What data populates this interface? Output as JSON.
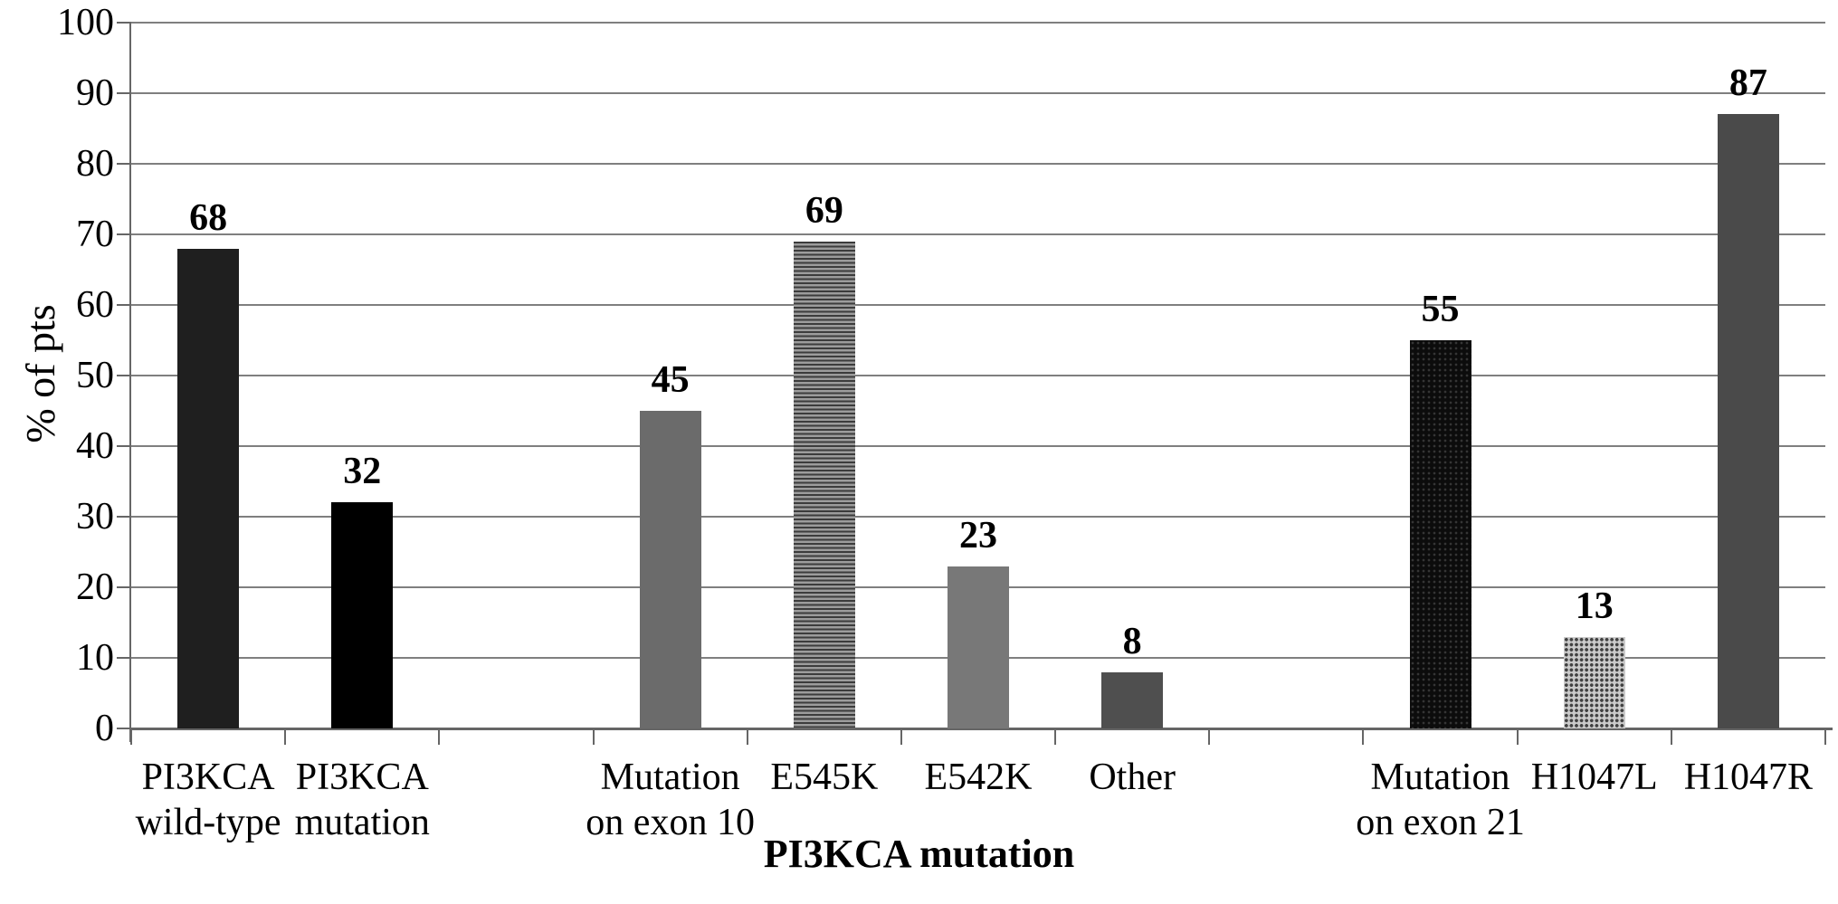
{
  "chart_data": {
    "type": "bar",
    "title": "",
    "xlabel": "PI3KCA mutation",
    "ylabel": "% of pts",
    "ylim": [
      0,
      100
    ],
    "y_ticks": [
      0,
      10,
      20,
      30,
      40,
      50,
      60,
      70,
      80,
      90,
      100
    ],
    "grid": true,
    "legend": false,
    "n_slots": 11,
    "categories": [
      "PI3KCA wild-type",
      "PI3KCA mutation",
      "Mutation on exon 10",
      "E545K",
      "E542K",
      "Other",
      "Mutation on exon 21",
      "H1047L",
      "H1047R"
    ],
    "values": [
      68,
      32,
      45,
      69,
      23,
      8,
      55,
      13,
      87
    ],
    "bars": [
      {
        "slot": 0,
        "label": "PI3KCA\nwild-type",
        "value": 68,
        "pattern": "near_black"
      },
      {
        "slot": 1,
        "label": "PI3KCA\nmutation",
        "value": 32,
        "pattern": "black"
      },
      {
        "slot": 3,
        "label": "Mutation\non exon 10",
        "value": 45,
        "pattern": "gray"
      },
      {
        "slot": 4,
        "label": "E545K",
        "value": 69,
        "pattern": "h_stripes"
      },
      {
        "slot": 5,
        "label": "E542K",
        "value": 23,
        "pattern": "gray_light"
      },
      {
        "slot": 6,
        "label": "Other",
        "value": 8,
        "pattern": "dark_gray"
      },
      {
        "slot": 8,
        "label": "Mutation\non exon 21",
        "value": 55,
        "pattern": "black_dots"
      },
      {
        "slot": 9,
        "label": "H1047L",
        "value": 13,
        "pattern": "light_grid"
      },
      {
        "slot": 10,
        "label": "H1047R",
        "value": 87,
        "pattern": "dark_gray2"
      }
    ],
    "colors": {
      "near_black": "#1f1f1f",
      "black": "#000000",
      "gray": "#6b6b6b",
      "gray_light": "#787878",
      "dark_gray": "#4f4f4f",
      "dark_gray2": "#4a4a4a",
      "h_stripes_dark": "#3c3c3c",
      "h_stripes_light": "#9c9c9c",
      "light_grid_bg": "#cbcbcb",
      "gridline": "#7f7f7f",
      "axis": "#666666",
      "text": "#000000"
    }
  }
}
